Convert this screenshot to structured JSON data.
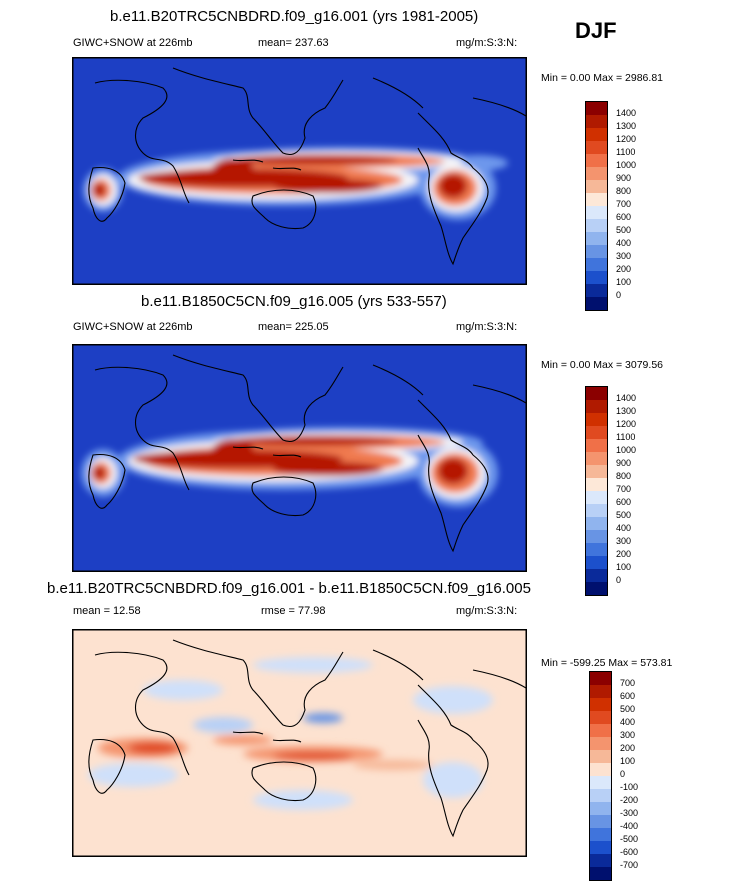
{
  "season": "DJF",
  "panels": [
    {
      "title": "b.e11.B20TRC5CNBDRD.f09_g16.001 (yrs 1981-2005)",
      "left_label": "GIWC+SNOW at 226mb",
      "center_label": "mean= 237.63",
      "units": "mg/m:S:3:N:",
      "minmax": "Min =    0.00 Max = 2986.81",
      "levels": [
        "1400",
        "1300",
        "1200",
        "1100",
        "1000",
        "900",
        "800",
        "700",
        "600",
        "500",
        "400",
        "300",
        "200",
        "100",
        "0"
      ],
      "colors": [
        "#8b0000",
        "#b01a00",
        "#d03000",
        "#e04a20",
        "#f07048",
        "#f4946e",
        "#f6b898",
        "#fde8d8",
        "#dbe8fb",
        "#b8d0f6",
        "#90b4ee",
        "#6894e4",
        "#4074dc",
        "#1c50cc",
        "#0a2a9a",
        "#00106e"
      ]
    },
    {
      "title": "b.e11.B1850C5CN.f09_g16.005 (yrs 533-557)",
      "left_label": "GIWC+SNOW at 226mb",
      "center_label": "mean= 225.05",
      "units": "mg/m:S:3:N:",
      "minmax": "Min =    0.00 Max = 3079.56",
      "levels": [
        "1400",
        "1300",
        "1200",
        "1100",
        "1000",
        "900",
        "800",
        "700",
        "600",
        "500",
        "400",
        "300",
        "200",
        "100",
        "0"
      ],
      "colors": [
        "#8b0000",
        "#b01a00",
        "#d03000",
        "#e04a20",
        "#f07048",
        "#f4946e",
        "#f6b898",
        "#fde8d8",
        "#dbe8fb",
        "#b8d0f6",
        "#90b4ee",
        "#6894e4",
        "#4074dc",
        "#1c50cc",
        "#0a2a9a",
        "#00106e"
      ]
    },
    {
      "title": "b.e11.B20TRC5CNBDRD.f09_g16.001 - b.e11.B1850C5CN.f09_g16.005",
      "left_label": "mean =  12.58",
      "center_label": "rmse =  77.98",
      "units": "mg/m:S:3:N:",
      "minmax": "Min = -599.25 Max = 573.81",
      "levels": [
        "700",
        "600",
        "500",
        "400",
        "300",
        "200",
        "100",
        "0",
        "-100",
        "-200",
        "-300",
        "-400",
        "-500",
        "-600",
        "-700"
      ],
      "colors": [
        "#8b0000",
        "#b01a00",
        "#d03000",
        "#e04a20",
        "#f07048",
        "#f4946e",
        "#f6b898",
        "#fde2d0",
        "#dbe8fb",
        "#b8d0f6",
        "#90b4ee",
        "#6894e4",
        "#4074dc",
        "#1c50cc",
        "#0a2a9a",
        "#00106e"
      ]
    }
  ]
}
